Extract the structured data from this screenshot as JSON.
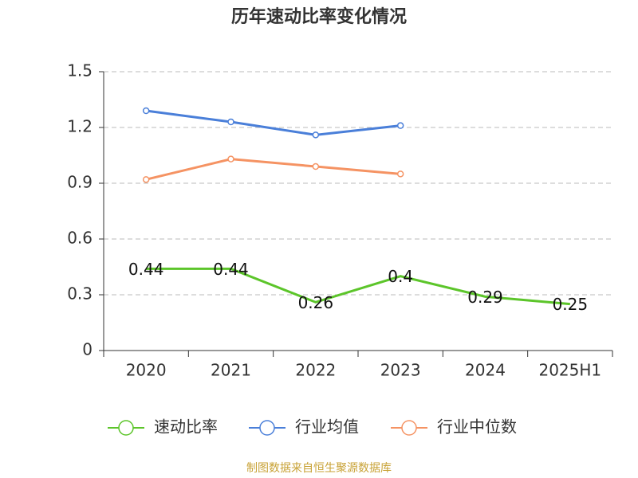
{
  "chart_data": {
    "type": "line",
    "title": "历年速动比率变化情况",
    "categories": [
      "2020",
      "2021",
      "2022",
      "2023",
      "2024",
      "2025H1"
    ],
    "series": [
      {
        "name": "速动比率",
        "color": "#5cc52a",
        "values": [
          0.44,
          0.44,
          0.26,
          0.4,
          0.29,
          0.25
        ],
        "markers": false,
        "data_labels": true
      },
      {
        "name": "行业均值",
        "color": "#4a7fd9",
        "values": [
          1.29,
          1.23,
          1.16,
          1.21,
          null,
          null
        ],
        "markers": true,
        "data_labels": false
      },
      {
        "name": "行业中位数",
        "color": "#f59363",
        "values": [
          0.92,
          1.03,
          0.99,
          0.95,
          null,
          null
        ],
        "markers": true,
        "data_labels": false
      }
    ],
    "ylim": [
      0,
      1.5
    ],
    "yticks": [
      0,
      0.3,
      0.6,
      0.9,
      1.2,
      1.5
    ],
    "grid": true,
    "legend": "bottom",
    "source": "制图数据来自恒生聚源数据库"
  }
}
